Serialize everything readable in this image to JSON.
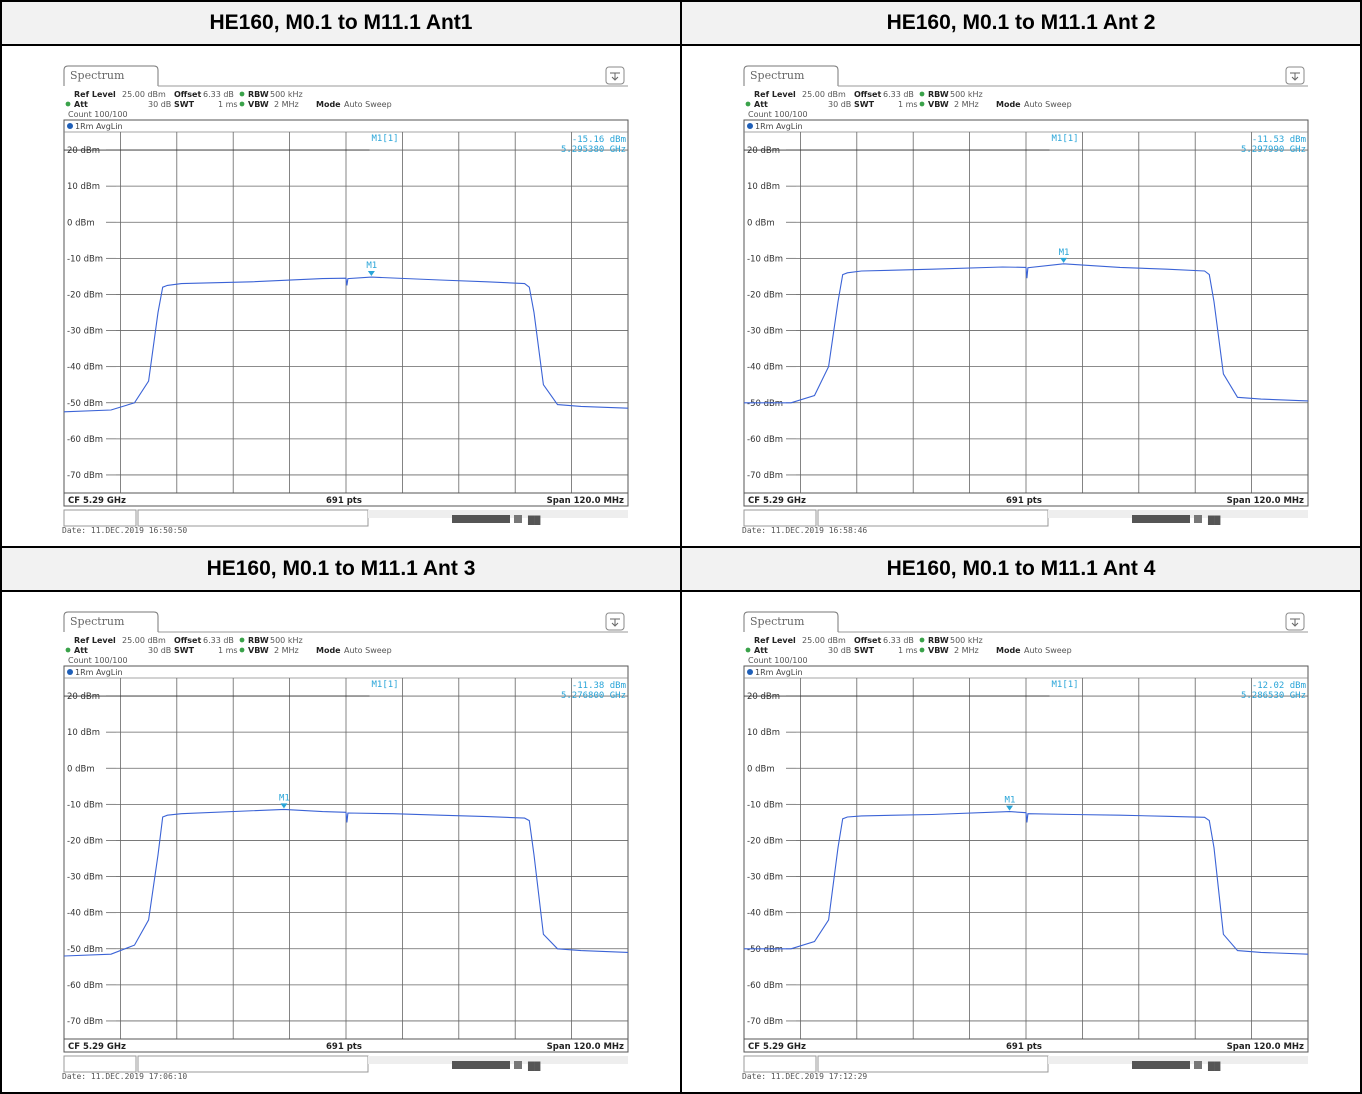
{
  "panels": [
    {
      "title": "HE160, M0.1 to M11.1 Ant1",
      "tab": "Spectrum",
      "settings": {
        "ref_level_label": "Ref Level",
        "ref_level": "25.00 dBm",
        "offset_label": "Offset",
        "offset": "6.33 dB",
        "rbw_label": "RBW",
        "rbw": "500 kHz",
        "att_label": "Att",
        "att": "30 dB",
        "swt_label": "SWT",
        "swt": "1 ms",
        "vbw_label": "VBW",
        "vbw": "2 MHz",
        "mode_label": "Mode",
        "mode": "Auto Sweep",
        "count": "Count 100/100"
      },
      "trace_label": "1Rm AvgLin",
      "marker": {
        "name": "M1",
        "label": "M1[1]",
        "level": "-15.16 dBm",
        "freq": "5.295380 GHz"
      },
      "footer": {
        "cf": "CF 5.29 GHz",
        "pts": "691 pts",
        "span": "Span 120.0 MHz"
      },
      "date": "Date: 11.DEC.2019  16:50:50",
      "chart_data": {
        "type": "line",
        "x_unit": "MHz offset from CF 5.29 GHz",
        "xlim": [
          -60,
          60
        ],
        "ylim": [
          -75,
          25
        ],
        "y_ticks": [
          20,
          10,
          0,
          -10,
          -20,
          -30,
          -40,
          -50,
          -60,
          -70
        ],
        "y_tick_labels": [
          "20 dBm",
          "10 dBm",
          "0 dBm",
          "-10 dBm",
          "-20 dBm",
          "-30 dBm",
          "-40 dBm",
          "-50 dBm",
          "-60 dBm",
          "-70 dBm"
        ],
        "ref_line": 20,
        "marker_x": 5.4,
        "marker_y": -15.16,
        "series": [
          {
            "x": [
              -60,
              -50,
              -45,
              -42,
              -40,
              -39,
              -38,
              -35,
              -20,
              -5,
              0,
              0.2,
              0.4,
              5.4,
              20,
              30,
              38,
              39,
              40,
              42,
              45,
              50,
              60
            ],
            "y": [
              -52.5,
              -52,
              -50,
              -44,
              -25,
              -18,
              -17.5,
              -17,
              -16.5,
              -15.6,
              -15.5,
              -17.5,
              -15.6,
              -15.2,
              -16,
              -16.5,
              -17,
              -18,
              -25,
              -45,
              -50.5,
              -51,
              -51.5
            ]
          }
        ]
      }
    },
    {
      "title": "HE160, M0.1 to M11.1 Ant 2",
      "tab": "Spectrum",
      "settings": {
        "ref_level_label": "Ref Level",
        "ref_level": "25.00 dBm",
        "offset_label": "Offset",
        "offset": "6.33 dB",
        "rbw_label": "RBW",
        "rbw": "500 kHz",
        "att_label": "Att",
        "att": "30 dB",
        "swt_label": "SWT",
        "swt": "1 ms",
        "vbw_label": "VBW",
        "vbw": "2 MHz",
        "mode_label": "Mode",
        "mode": "Auto Sweep",
        "count": "Count 100/100"
      },
      "trace_label": "1Rm AvgLin",
      "marker": {
        "name": "M1",
        "label": "M1[1]",
        "level": "-11.53 dBm",
        "freq": "5.297990 GHz"
      },
      "footer": {
        "cf": "CF 5.29 GHz",
        "pts": "691 pts",
        "span": "Span 120.0 MHz"
      },
      "date": "Date: 11.DEC.2019  16:58:46",
      "chart_data": {
        "type": "line",
        "x_unit": "MHz offset from CF 5.29 GHz",
        "xlim": [
          -60,
          60
        ],
        "ylim": [
          -75,
          25
        ],
        "y_ticks": [
          20,
          10,
          0,
          -10,
          -20,
          -30,
          -40,
          -50,
          -60,
          -70
        ],
        "y_tick_labels": [
          "20 dBm",
          "10 dBm",
          "0 dBm",
          "-10 dBm",
          "-20 dBm",
          "-30 dBm",
          "-40 dBm",
          "-50 dBm",
          "-60 dBm",
          "-70 dBm"
        ],
        "ref_line": 20,
        "marker_x": 8,
        "marker_y": -11.53,
        "series": [
          {
            "x": [
              -60,
              -50,
              -45,
              -42,
              -40,
              -39,
              -38,
              -35,
              -20,
              -5,
              0,
              0.2,
              0.4,
              8,
              20,
              30,
              38,
              39,
              40,
              42,
              45,
              50,
              60
            ],
            "y": [
              -50,
              -50,
              -48,
              -40,
              -22,
              -14.5,
              -14,
              -13.5,
              -13,
              -12.4,
              -12.5,
              -15.5,
              -12.6,
              -11.5,
              -12.5,
              -13,
              -13.5,
              -14.5,
              -22,
              -42,
              -48.5,
              -49,
              -49.5
            ]
          }
        ]
      }
    },
    {
      "title": "HE160, M0.1 to M11.1 Ant 3",
      "tab": "Spectrum",
      "settings": {
        "ref_level_label": "Ref Level",
        "ref_level": "25.00 dBm",
        "offset_label": "Offset",
        "offset": "6.33 dB",
        "rbw_label": "RBW",
        "rbw": "500 kHz",
        "att_label": "Att",
        "att": "30 dB",
        "swt_label": "SWT",
        "swt": "1 ms",
        "vbw_label": "VBW",
        "vbw": "2 MHz",
        "mode_label": "Mode",
        "mode": "Auto Sweep",
        "count": "Count 100/100"
      },
      "trace_label": "1Rm AvgLin",
      "marker": {
        "name": "M1",
        "label": "M1[1]",
        "level": "-11.38 dBm",
        "freq": "5.276800 GHz"
      },
      "footer": {
        "cf": "CF 5.29 GHz",
        "pts": "691 pts",
        "span": "Span 120.0 MHz"
      },
      "date": "Date: 11.DEC.2019  17:06:10",
      "chart_data": {
        "type": "line",
        "x_unit": "MHz offset from CF 5.29 GHz",
        "xlim": [
          -60,
          60
        ],
        "ylim": [
          -75,
          25
        ],
        "y_ticks": [
          20,
          10,
          0,
          -10,
          -20,
          -30,
          -40,
          -50,
          -60,
          -70
        ],
        "y_tick_labels": [
          "20 dBm",
          "10 dBm",
          "0 dBm",
          "-10 dBm",
          "-20 dBm",
          "-30 dBm",
          "-40 dBm",
          "-50 dBm",
          "-60 dBm",
          "-70 dBm"
        ],
        "ref_line": 20,
        "marker_x": -13.2,
        "marker_y": -11.38,
        "series": [
          {
            "x": [
              -60,
              -50,
              -45,
              -42,
              -40,
              -39,
              -38,
              -35,
              -13.2,
              -5,
              0,
              0.2,
              0.4,
              10,
              20,
              30,
              38,
              39,
              40,
              42,
              45,
              50,
              60
            ],
            "y": [
              -52,
              -51.5,
              -49,
              -42,
              -24,
              -13.5,
              -13,
              -12.6,
              -11.4,
              -12,
              -12.2,
              -15,
              -12.4,
              -12.6,
              -13,
              -13.4,
              -13.8,
              -14.5,
              -24,
              -46,
              -50,
              -50.5,
              -51
            ]
          }
        ]
      }
    },
    {
      "title": "HE160, M0.1 to M11.1 Ant 4",
      "tab": "Spectrum",
      "settings": {
        "ref_level_label": "Ref Level",
        "ref_level": "25.00 dBm",
        "offset_label": "Offset",
        "offset": "6.33 dB",
        "rbw_label": "RBW",
        "rbw": "500 kHz",
        "att_label": "Att",
        "att": "30 dB",
        "swt_label": "SWT",
        "swt": "1 ms",
        "vbw_label": "VBW",
        "vbw": "2 MHz",
        "mode_label": "Mode",
        "mode": "Auto Sweep",
        "count": "Count 100/100"
      },
      "trace_label": "1Rm AvgLin",
      "marker": {
        "name": "M1",
        "label": "M1[1]",
        "level": "-12.02 dBm",
        "freq": "5.286530 GHz"
      },
      "footer": {
        "cf": "CF 5.29 GHz",
        "pts": "691 pts",
        "span": "Span 120.0 MHz"
      },
      "date": "Date: 11.DEC.2019  17:12:29",
      "chart_data": {
        "type": "line",
        "x_unit": "MHz offset from CF 5.29 GHz",
        "xlim": [
          -60,
          60
        ],
        "ylim": [
          -75,
          25
        ],
        "y_ticks": [
          20,
          10,
          0,
          -10,
          -20,
          -30,
          -40,
          -50,
          -60,
          -70
        ],
        "y_tick_labels": [
          "20 dBm",
          "10 dBm",
          "0 dBm",
          "-10 dBm",
          "-20 dBm",
          "-30 dBm",
          "-40 dBm",
          "-50 dBm",
          "-60 dBm",
          "-70 dBm"
        ],
        "ref_line": 20,
        "marker_x": -3.5,
        "marker_y": -12.02,
        "series": [
          {
            "x": [
              -60,
              -50,
              -45,
              -42,
              -40,
              -39,
              -38,
              -35,
              -20,
              -3.5,
              0,
              0.2,
              0.4,
              10,
              20,
              30,
              38,
              39,
              40,
              42,
              45,
              50,
              60
            ],
            "y": [
              -50,
              -50,
              -48,
              -42,
              -22,
              -14,
              -13.5,
              -13.2,
              -12.8,
              -12,
              -12.3,
              -15,
              -12.6,
              -12.8,
              -13,
              -13.3,
              -13.6,
              -14.5,
              -22,
              -46,
              -50.5,
              -51,
              -51.5
            ]
          }
        ]
      }
    }
  ]
}
